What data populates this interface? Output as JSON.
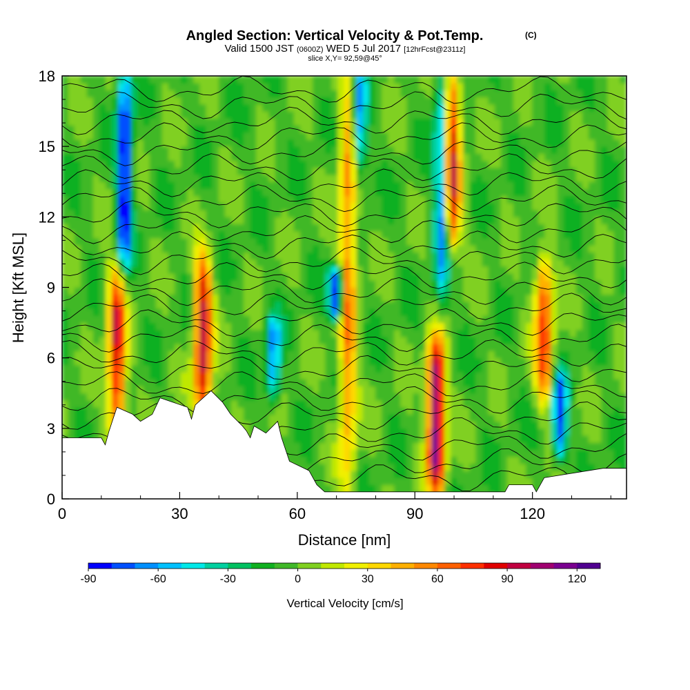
{
  "title": {
    "main": "Angled Section: Vertical Velocity & Pot.Temp.",
    "main_suffix": "(C)",
    "valid_a": "Valid 1500 JST",
    "valid_b": "(0600Z)",
    "valid_c": "WED 5 Jul 2017",
    "valid_d": "[12hrFcst@2311z]",
    "slice": "slice X,Y= 92,59@45°"
  },
  "chart_data": {
    "type": "heatmap",
    "title": "Angled Section: Vertical Velocity & Pot.Temp.",
    "xlabel": "Distance [nm]",
    "ylabel": "Height [Kft MSL]",
    "xlim": [
      0,
      144
    ],
    "ylim": [
      0,
      18
    ],
    "x_ticks": [
      "0",
      "30",
      "60",
      "90",
      "120"
    ],
    "x_tick_values": [
      0,
      30,
      60,
      90,
      120
    ],
    "y_ticks": [
      "0",
      "3",
      "6",
      "9",
      "12",
      "15",
      "18"
    ],
    "y_tick_values": [
      0,
      3,
      6,
      9,
      12,
      15,
      18
    ],
    "colorbar": {
      "title": "Vertical Velocity [cm/s]",
      "labels": [
        "-90",
        "-60",
        "-30",
        "0",
        "30",
        "60",
        "90",
        "120"
      ],
      "label_values": [
        -90,
        -60,
        -30,
        0,
        30,
        60,
        90,
        120
      ],
      "range": [
        -90,
        130
      ],
      "step": 10,
      "colors": [
        "#0000ff",
        "#0050ff",
        "#0090ff",
        "#00c0ff",
        "#00e8e8",
        "#00d0a0",
        "#00c060",
        "#10b020",
        "#40b828",
        "#80d020",
        "#c0e800",
        "#f0f000",
        "#ffd800",
        "#ffb000",
        "#ff8800",
        "#ff6000",
        "#ff3000",
        "#e00000",
        "#c00040",
        "#a00070",
        "#7a0090",
        "#500090"
      ]
    },
    "updrafts": [
      {
        "x": 14,
        "z_min": 3,
        "z_max": 9.5,
        "peak": 95
      },
      {
        "x": 36,
        "z_min": 3.5,
        "z_max": 10,
        "peak": 100
      },
      {
        "x": 73,
        "z_min": 0.5,
        "z_max": 18,
        "peak": 60
      },
      {
        "x": 95.5,
        "z_min": 0.5,
        "z_max": 6.5,
        "peak": 125
      },
      {
        "x": 99.5,
        "z_min": 11,
        "z_max": 18,
        "peak": 95
      },
      {
        "x": 123,
        "z_min": 4.5,
        "z_max": 10,
        "peak": 80
      }
    ],
    "downdrafts": [
      {
        "x": 16,
        "z_min": 10,
        "z_max": 18,
        "peak": -90
      },
      {
        "x": 54,
        "z_min": 4.5,
        "z_max": 7.5,
        "peak": -60
      },
      {
        "x": 70,
        "z_min": 8,
        "z_max": 9.5,
        "peak": -90
      },
      {
        "x": 76,
        "z_min": 14,
        "z_max": 18,
        "peak": -60
      },
      {
        "x": 97,
        "z_min": 9,
        "z_max": 18,
        "peak": -70
      },
      {
        "x": 127,
        "z_min": 2,
        "z_max": 5,
        "peak": -80
      }
    ],
    "terrain": [
      [
        0,
        2.6
      ],
      [
        10,
        2.6
      ],
      [
        11,
        2.3
      ],
      [
        12,
        2.9
      ],
      [
        13,
        3.4
      ],
      [
        14,
        3.9
      ],
      [
        18,
        3.6
      ],
      [
        20,
        3.3
      ],
      [
        23,
        3.6
      ],
      [
        25,
        4.3
      ],
      [
        32,
        3.9
      ],
      [
        33,
        3.4
      ],
      [
        34,
        4.0
      ],
      [
        38,
        4.6
      ],
      [
        41,
        4.1
      ],
      [
        43,
        3.6
      ],
      [
        46,
        3.1
      ],
      [
        47,
        2.9
      ],
      [
        48,
        2.6
      ],
      [
        49,
        3.1
      ],
      [
        52,
        2.8
      ],
      [
        55,
        3.3
      ],
      [
        56,
        2.6
      ],
      [
        58,
        1.6
      ],
      [
        63,
        1.2
      ],
      [
        65,
        0.6
      ],
      [
        67,
        0.3
      ],
      [
        113,
        0.3
      ],
      [
        114,
        0.6
      ],
      [
        120,
        0.6
      ],
      [
        121,
        0.3
      ],
      [
        123,
        0.9
      ],
      [
        138,
        1.3
      ],
      [
        144,
        1.3
      ]
    ]
  }
}
